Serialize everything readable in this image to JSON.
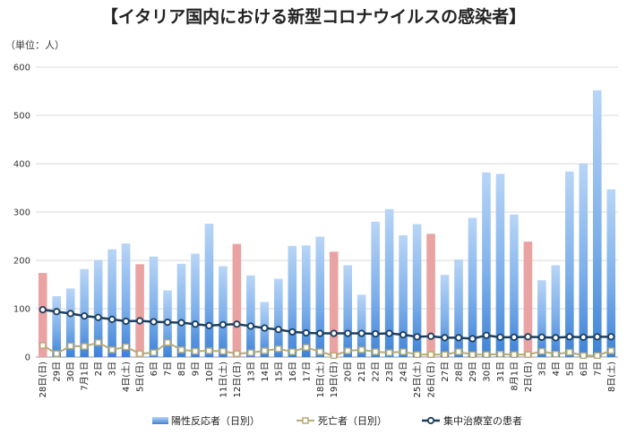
{
  "chart_data": {
    "type": "bar",
    "title": "【イタリア国内における新型コロナウイルスの感染者】",
    "unit_label": "（単位：人）",
    "ylim": [
      0,
      600
    ],
    "yticks": [
      "0",
      "100",
      "200",
      "300",
      "400",
      "500",
      "600"
    ],
    "grid": true,
    "legend_position": "bottom",
    "categories": [
      "28日(日)",
      "29日",
      "30日",
      "7月1日",
      "2日",
      "3日",
      "4日(土)",
      "5日(日)",
      "6日",
      "7日",
      "8日",
      "9日",
      "10日",
      "11日(土)",
      "12日(日)",
      "13日",
      "14日",
      "15日",
      "16日",
      "17日",
      "18日(土)",
      "19日(日)",
      "20日",
      "21日",
      "22日",
      "23日",
      "24日",
      "25日(土)",
      "26日(日)",
      "27日",
      "28日",
      "29日",
      "30日",
      "31日",
      "8月1日",
      "2日(日)",
      "3日",
      "4日",
      "5日",
      "6日",
      "7日",
      "8日(土)"
    ],
    "highlight_sunday": [
      true,
      false,
      false,
      false,
      false,
      false,
      false,
      true,
      false,
      false,
      false,
      false,
      false,
      false,
      true,
      false,
      false,
      false,
      false,
      false,
      false,
      true,
      false,
      false,
      false,
      false,
      false,
      false,
      true,
      false,
      false,
      false,
      false,
      false,
      false,
      true,
      false,
      false,
      false,
      false,
      false,
      false
    ],
    "series": [
      {
        "name": "陽性反応者（日別）",
        "kind": "bar",
        "values": [
          174,
          126,
          142,
          182,
          201,
          223,
          235,
          192,
          208,
          138,
          193,
          214,
          276,
          188,
          234,
          169,
          114,
          162,
          230,
          231,
          249,
          218,
          190,
          129,
          280,
          306,
          252,
          275,
          255,
          170,
          202,
          288,
          382,
          379,
          295,
          239,
          159,
          190,
          384,
          401,
          552,
          347
        ]
      },
      {
        "name": "死亡者（日別）",
        "kind": "line",
        "values": [
          24,
          7,
          23,
          22,
          30,
          15,
          21,
          7,
          9,
          30,
          15,
          12,
          13,
          12,
          7,
          9,
          13,
          17,
          11,
          20,
          11,
          3,
          13,
          15,
          11,
          9,
          11,
          5,
          5,
          5,
          11,
          5,
          5,
          6,
          5,
          5,
          12,
          6,
          10,
          3,
          3,
          13
        ]
      },
      {
        "name": "集中治療室の患者",
        "kind": "line",
        "values": [
          98,
          94,
          90,
          85,
          82,
          78,
          74,
          75,
          73,
          72,
          71,
          68,
          65,
          67,
          68,
          64,
          60,
          57,
          52,
          50,
          49,
          49,
          49,
          49,
          48,
          49,
          46,
          42,
          43,
          40,
          40,
          38,
          45,
          41,
          41,
          42,
          41,
          40,
          42,
          41,
          42,
          42
        ]
      }
    ]
  },
  "colors": {
    "bar_weekday": "#7fb0ea",
    "bar_weekday_light": "#b8d5f6",
    "bar_weekday_dark": "#3e82d6",
    "bar_sunday": "#e9a3a3",
    "deaths_line": "#b5ab77",
    "icu_line": "#1d3f5e",
    "grid": "#d8d8d8"
  }
}
